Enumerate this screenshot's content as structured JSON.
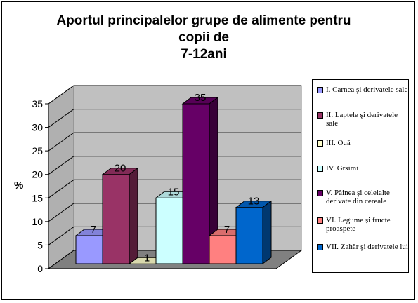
{
  "chart_data": {
    "type": "bar",
    "title_lines": [
      "Aportul principalelor grupe de alimente pentru",
      "copii de",
      "7-12ani"
    ],
    "ylabel": "%",
    "ylim": [
      0,
      35
    ],
    "yticks": [
      "0",
      "5",
      "10",
      "15",
      "20",
      "25",
      "30",
      "35"
    ],
    "grid": true,
    "legend_position": "right",
    "categories": [
      "I. Carnea şi derivatele sale",
      "II. Laptele şi derivatele sale",
      "III. Ouă",
      "IV. Grsimi",
      "V. Pâinea şi celelalte derivate din cereale",
      "VI. Legume şi fructe proaspete",
      "VII. Zahăr şi derivatele lui"
    ],
    "values": [
      7,
      20,
      1,
      15,
      35,
      7,
      13
    ],
    "value_labels": [
      "7",
      "20",
      "1",
      "15",
      "35",
      "7",
      "13"
    ],
    "colors": [
      "#9999ff",
      "#993366",
      "#ffffcc",
      "#ccffff",
      "#660066",
      "#ff8080",
      "#0066cc"
    ]
  }
}
